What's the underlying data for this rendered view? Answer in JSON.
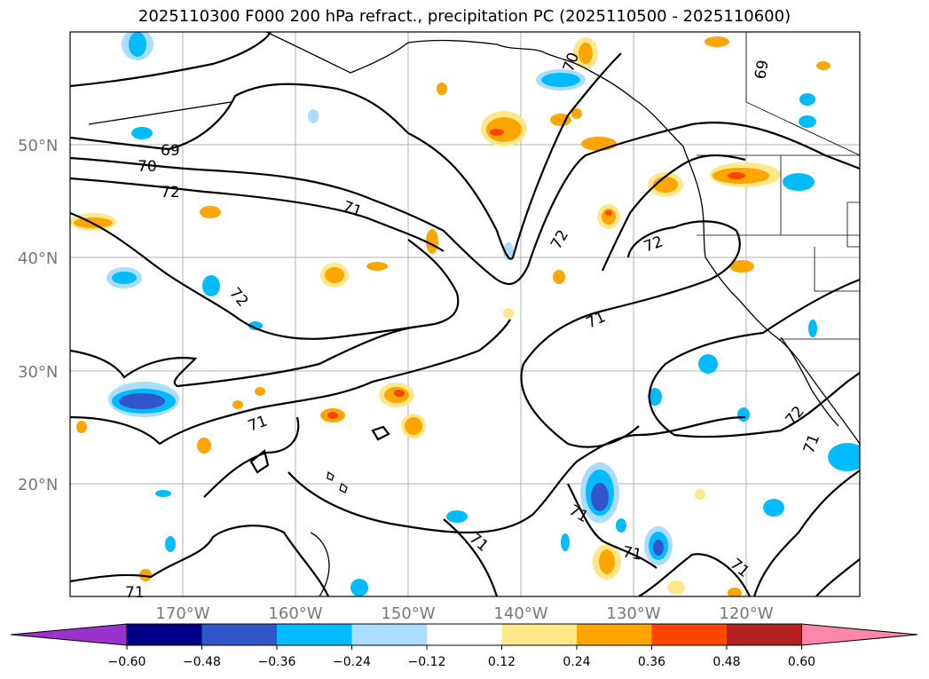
{
  "title": "2025110300 F000 200 hPa refract., precipitation PC (2025110500 - 2025110600)",
  "lat_labels": [
    "50°N",
    "40°N",
    "30°N",
    "20°N"
  ],
  "lon_labels": [
    "170°W",
    "160°W",
    "150°W",
    "140°W",
    "130°W",
    "120°W"
  ],
  "colorbar": {
    "ticks": [
      "−0.60",
      "−0.48",
      "−0.36",
      "−0.24",
      "−0.12",
      "0.12",
      "0.24",
      "0.36",
      "0.48",
      "0.60"
    ],
    "colors": [
      "#9933cc",
      "#000088",
      "#3355cc",
      "#00bbff",
      "#aaddff",
      "#ffffff",
      "#ffe88a",
      "#ffa500",
      "#ff4400",
      "#b22222",
      "#ff88aa"
    ]
  },
  "contour_labels": [
    "69",
    "70",
    "72",
    "71",
    "72",
    "72",
    "72",
    "71",
    "71",
    "71",
    "71",
    "71",
    "71",
    "71",
    "72",
    "71",
    "69",
    "70"
  ]
}
